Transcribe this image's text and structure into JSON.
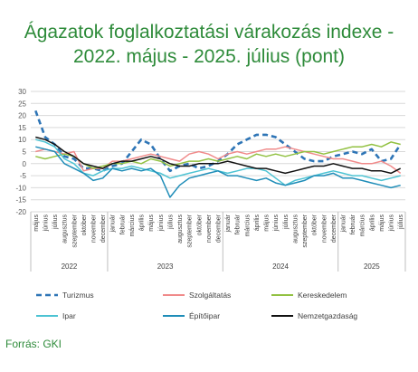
{
  "title_line1": "Ágazatok foglalkoztatási várakozás indexe -",
  "title_line2": "2022. május - 2025. július (pont)",
  "source": "Forrás: GKI",
  "chart_data": {
    "type": "line",
    "title": "Ágazatok foglalkoztatási várakozás indexe - 2022. május - 2025. július (pont)",
    "xlabel": "",
    "ylabel": "",
    "ylim": [
      -20,
      30
    ],
    "yticks": [
      -20,
      -15,
      -10,
      -5,
      0,
      5,
      10,
      15,
      20,
      25,
      30
    ],
    "grid": true,
    "legend_position": "bottom",
    "categories": [
      "május",
      "június",
      "július",
      "augusztus",
      "szeptember",
      "október",
      "november",
      "december",
      "január",
      "február",
      "március",
      "április",
      "május",
      "június",
      "július",
      "augusztus",
      "szeptember",
      "október",
      "november",
      "december",
      "január",
      "február",
      "március",
      "április",
      "május",
      "június",
      "július",
      "augusztus",
      "szeptember",
      "október",
      "november",
      "december",
      "január",
      "február",
      "március",
      "április",
      "május",
      "június",
      "július"
    ],
    "years": [
      {
        "label": "2022",
        "start": 0,
        "end": 7
      },
      {
        "label": "2023",
        "start": 8,
        "end": 19
      },
      {
        "label": "2024",
        "start": 20,
        "end": 31
      },
      {
        "label": "2025",
        "start": 32,
        "end": 38
      }
    ],
    "series": [
      {
        "name": "Turizmus",
        "color": "#2e75b6",
        "dash": "dashed",
        "values": [
          22,
          11,
          8,
          3,
          2,
          -2,
          -2,
          -3,
          -1,
          0,
          5,
          10,
          8,
          2,
          -3,
          -1,
          0,
          -2,
          -1,
          1,
          4,
          8,
          10,
          12,
          12,
          11,
          8,
          5,
          2,
          1,
          1,
          3,
          4,
          5,
          4,
          6,
          1,
          2,
          8
        ]
      },
      {
        "name": "Szolgáltatás",
        "color": "#f08a8a",
        "dash": "solid",
        "values": [
          5,
          6,
          5,
          4,
          5,
          -3,
          -2,
          -2,
          1,
          1,
          2,
          3,
          4,
          3,
          2,
          1,
          4,
          5,
          4,
          2,
          4,
          5,
          4,
          5,
          6,
          6,
          7,
          6,
          5,
          4,
          3,
          2,
          2,
          1,
          0,
          0,
          1,
          -1,
          -4
        ]
      },
      {
        "name": "Kereskedelem",
        "color": "#92c142",
        "dash": "solid",
        "values": [
          3,
          2,
          3,
          4,
          3,
          0,
          -2,
          -1,
          0,
          0,
          1,
          0,
          2,
          1,
          -1,
          0,
          1,
          1,
          2,
          1,
          2,
          3,
          2,
          4,
          3,
          4,
          3,
          4,
          5,
          5,
          4,
          5,
          6,
          7,
          7,
          8,
          7,
          9,
          8
        ]
      },
      {
        "name": "Ipar",
        "color": "#4dc3d3",
        "dash": "solid",
        "values": [
          10,
          9,
          7,
          2,
          0,
          -4,
          -5,
          -3,
          -2,
          -2,
          -1,
          -2,
          -3,
          -4,
          -6,
          -5,
          -4,
          -3,
          -2,
          -3,
          -4,
          -3,
          -2,
          -2,
          -3,
          -6,
          -9,
          -7,
          -6,
          -5,
          -4,
          -3,
          -4,
          -5,
          -5,
          -6,
          -7,
          -6,
          -5
        ]
      },
      {
        "name": "Építőipar",
        "color": "#1f8db8",
        "dash": "solid",
        "values": [
          7,
          6,
          5,
          0,
          -2,
          -4,
          -7,
          -6,
          -2,
          -3,
          -2,
          -3,
          -2,
          -5,
          -14,
          -9,
          -6,
          -5,
          -4,
          -3,
          -5,
          -5,
          -6,
          -7,
          -6,
          -8,
          -9,
          -8,
          -7,
          -5,
          -5,
          -4,
          -6,
          -6,
          -7,
          -8,
          -9,
          -10,
          -9
        ]
      },
      {
        "name": "Nemzetgazdaság",
        "color": "#111111",
        "dash": "solid",
        "values": [
          11,
          10,
          8,
          5,
          3,
          0,
          -1,
          -2,
          0,
          1,
          1,
          2,
          3,
          2,
          0,
          -1,
          -1,
          0,
          0,
          0,
          1,
          0,
          -1,
          -2,
          -2,
          -3,
          -4,
          -3,
          -2,
          -1,
          -1,
          0,
          -1,
          -2,
          -2,
          -3,
          -3,
          -4,
          -2
        ]
      }
    ]
  }
}
